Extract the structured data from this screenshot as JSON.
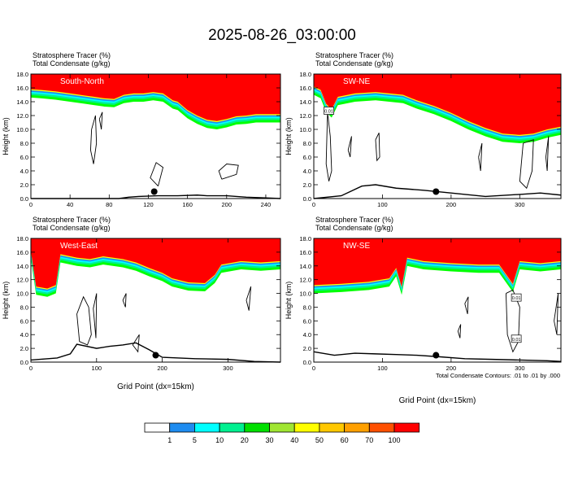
{
  "figure": {
    "title": "2025-08-26_03:00:00",
    "footnote": "Total Condensate Contours: .01 to .01 by .000"
  },
  "colorbar": {
    "labels": [
      "1",
      "5",
      "10",
      "20",
      "30",
      "40",
      "50",
      "60",
      "70",
      "100"
    ],
    "colors": [
      "#ffffff",
      "#1e8cf0",
      "#00ffff",
      "#00f090",
      "#00e000",
      "#a0e632",
      "#ffff00",
      "#ffc800",
      "#ffa000",
      "#ff5000",
      "#ff0000"
    ]
  },
  "chart_data": [
    {
      "type": "area",
      "name": "South-North",
      "label": "South-North",
      "header_left1": "Stratosphere Tracer",
      "header_unit1": "(%)",
      "header_left2": "Total Condensate",
      "header_unit2": "(g/kg)",
      "ylabel": "Height (km)",
      "xlabel": "",
      "xlim": [
        0,
        255
      ],
      "ylim": [
        0,
        18
      ],
      "xticks": [
        "0",
        "40",
        "80",
        "120",
        "160",
        "200",
        "240"
      ],
      "xtick_values": [
        0,
        40,
        80,
        120,
        160,
        200,
        240
      ],
      "yticks": [
        "0.0",
        "2.0",
        "4.0",
        "6.0",
        "8.0",
        "10.0",
        "12.0",
        "14.0",
        "16.0",
        "18.0"
      ],
      "tracer_base_km": [
        [
          0,
          15.6
        ],
        [
          10,
          15.5
        ],
        [
          25,
          15.3
        ],
        [
          40,
          15.0
        ],
        [
          55,
          14.7
        ],
        [
          65,
          14.5
        ],
        [
          75,
          14.3
        ],
        [
          85,
          14.2
        ],
        [
          95,
          14.8
        ],
        [
          105,
          15.0
        ],
        [
          115,
          15.0
        ],
        [
          125,
          15.2
        ],
        [
          135,
          15.0
        ],
        [
          140,
          14.5
        ],
        [
          145,
          14.0
        ],
        [
          150,
          13.8
        ],
        [
          160,
          12.6
        ],
        [
          170,
          11.8
        ],
        [
          180,
          11.2
        ],
        [
          190,
          11.0
        ],
        [
          200,
          11.3
        ],
        [
          210,
          11.7
        ],
        [
          220,
          11.8
        ],
        [
          230,
          12.0
        ],
        [
          240,
          12.0
        ],
        [
          255,
          12.0
        ]
      ],
      "terrain_km": [
        [
          0,
          0
        ],
        [
          90,
          0
        ],
        [
          100,
          0.2
        ],
        [
          110,
          0.3
        ],
        [
          130,
          0.4
        ],
        [
          150,
          0.4
        ],
        [
          170,
          0.5
        ],
        [
          180,
          0.4
        ],
        [
          200,
          0.4
        ],
        [
          220,
          0.2
        ],
        [
          240,
          0.1
        ],
        [
          255,
          0
        ]
      ],
      "marker_x": 126,
      "marker_y_km": 1.0
    },
    {
      "type": "area",
      "name": "SW-NE",
      "label": "SW-NE",
      "header_left1": "Stratosphere Tracer",
      "header_unit1": "(%)",
      "header_left2": "Total Condensate",
      "header_unit2": "(g/kg)",
      "ylabel": "Height (km)",
      "xlabel": "",
      "xlim": [
        0,
        360
      ],
      "ylim": [
        0,
        18
      ],
      "xticks": [
        "0",
        "100",
        "200",
        "300"
      ],
      "xtick_values": [
        0,
        100,
        200,
        300
      ],
      "yticks": [
        "0.0",
        "2.0",
        "4.0",
        "6.0",
        "8.0",
        "10.0",
        "12.0",
        "14.0",
        "16.0",
        "18.0"
      ],
      "tracer_base_km": [
        [
          0,
          16.0
        ],
        [
          10,
          15.5
        ],
        [
          18,
          13.5
        ],
        [
          26,
          12.7
        ],
        [
          35,
          14.5
        ],
        [
          60,
          15.0
        ],
        [
          90,
          15.2
        ],
        [
          110,
          15.0
        ],
        [
          130,
          14.8
        ],
        [
          150,
          14.0
        ],
        [
          175,
          13.2
        ],
        [
          200,
          12.2
        ],
        [
          225,
          11.0
        ],
        [
          250,
          10.0
        ],
        [
          275,
          9.2
        ],
        [
          300,
          9.0
        ],
        [
          320,
          9.2
        ],
        [
          340,
          9.8
        ],
        [
          360,
          10.2
        ]
      ],
      "terrain_km": [
        [
          0,
          0
        ],
        [
          40,
          0.4
        ],
        [
          70,
          1.8
        ],
        [
          90,
          2.0
        ],
        [
          120,
          1.5
        ],
        [
          160,
          1.2
        ],
        [
          200,
          0.8
        ],
        [
          250,
          0.3
        ],
        [
          300,
          0.6
        ],
        [
          330,
          0.8
        ],
        [
          360,
          0.5
        ]
      ],
      "marker_x": 178,
      "marker_y_km": 1.0,
      "box_labels": [
        "0.01"
      ]
    },
    {
      "type": "area",
      "name": "West-East",
      "label": "West-East",
      "header_left1": "Stratosphere Tracer",
      "header_unit1": "(%)",
      "header_left2": "Total Condensate",
      "header_unit2": "(g/kg)",
      "ylabel": "Height (km)",
      "xlabel": "Grid Point (dx=15km)",
      "xlim": [
        0,
        380
      ],
      "ylim": [
        0,
        18
      ],
      "xticks": [
        "0",
        "100",
        "200",
        "300"
      ],
      "xtick_values": [
        0,
        100,
        200,
        300
      ],
      "yticks": [
        "0.0",
        "2.0",
        "4.0",
        "6.0",
        "8.0",
        "10.0",
        "12.0",
        "14.0",
        "16.0",
        "18.0"
      ],
      "tracer_base_km": [
        [
          0,
          16.0
        ],
        [
          8,
          10.8
        ],
        [
          25,
          10.5
        ],
        [
          38,
          11.0
        ],
        [
          45,
          15.5
        ],
        [
          70,
          15.0
        ],
        [
          90,
          14.8
        ],
        [
          110,
          15.2
        ],
        [
          140,
          14.8
        ],
        [
          160,
          14.3
        ],
        [
          180,
          13.5
        ],
        [
          200,
          12.8
        ],
        [
          215,
          12.0
        ],
        [
          240,
          11.4
        ],
        [
          265,
          11.3
        ],
        [
          280,
          12.5
        ],
        [
          290,
          14.0
        ],
        [
          320,
          14.5
        ],
        [
          350,
          14.3
        ],
        [
          380,
          14.5
        ]
      ],
      "terrain_km": [
        [
          0,
          0.3
        ],
        [
          40,
          0.6
        ],
        [
          60,
          1.2
        ],
        [
          70,
          2.6
        ],
        [
          100,
          2.0
        ],
        [
          120,
          2.3
        ],
        [
          140,
          2.5
        ],
        [
          160,
          2.8
        ],
        [
          180,
          1.8
        ],
        [
          200,
          0.7
        ],
        [
          250,
          0.5
        ],
        [
          300,
          0.4
        ],
        [
          340,
          0.1
        ],
        [
          380,
          0
        ]
      ],
      "marker_x": 190,
      "marker_y_km": 1.0
    },
    {
      "type": "area",
      "name": "NW-SE",
      "label": "NW-SE",
      "header_left1": "Stratosphere Tracer",
      "header_unit1": "(%)",
      "header_left2": "Total Condensate",
      "header_unit2": "(g/kg)",
      "ylabel": "Height (km)",
      "xlabel": "Grid Point (dx=15km)",
      "xlim": [
        0,
        360
      ],
      "ylim": [
        0,
        18
      ],
      "xticks": [
        "0",
        "100",
        "200",
        "300"
      ],
      "xtick_values": [
        0,
        100,
        200,
        300
      ],
      "yticks": [
        "0.0",
        "2.0",
        "4.0",
        "6.0",
        "8.0",
        "10.0",
        "12.0",
        "14.0",
        "16.0",
        "18.0"
      ],
      "tracer_base_km": [
        [
          0,
          11.0
        ],
        [
          40,
          11.2
        ],
        [
          80,
          11.5
        ],
        [
          110,
          12.0
        ],
        [
          120,
          13.5
        ],
        [
          128,
          10.8
        ],
        [
          136,
          15.0
        ],
        [
          160,
          14.5
        ],
        [
          200,
          14.2
        ],
        [
          240,
          14.0
        ],
        [
          270,
          14.0
        ],
        [
          290,
          11.2
        ],
        [
          300,
          14.5
        ],
        [
          330,
          14.2
        ],
        [
          360,
          14.5
        ]
      ],
      "terrain_km": [
        [
          0,
          1.5
        ],
        [
          30,
          1.0
        ],
        [
          60,
          1.3
        ],
        [
          90,
          1.2
        ],
        [
          120,
          1.1
        ],
        [
          150,
          1.0
        ],
        [
          180,
          0.8
        ],
        [
          220,
          0.5
        ],
        [
          260,
          0.4
        ],
        [
          300,
          0.3
        ],
        [
          340,
          0.2
        ],
        [
          360,
          0.1
        ]
      ],
      "marker_x": 178,
      "marker_y_km": 1.0,
      "box_labels": [
        "0.01",
        "0.01"
      ]
    }
  ]
}
